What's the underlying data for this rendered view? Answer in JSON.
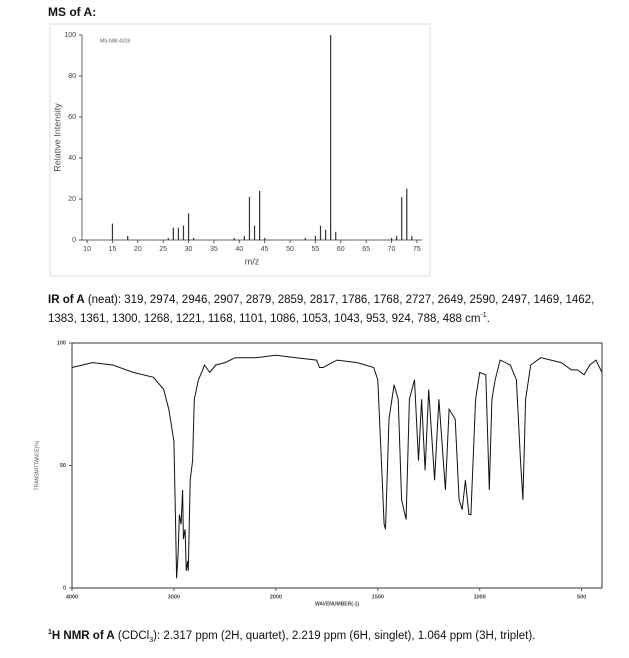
{
  "header": "MS of A:",
  "chart_data": [
    {
      "type": "bar",
      "note_label": "MS-NW-4319",
      "x_label": "m/z",
      "y_label": "Relative Intensity",
      "color": "#333333",
      "x": [
        15,
        18,
        26,
        27,
        28,
        29,
        30,
        31,
        39,
        41,
        42,
        43,
        44,
        45,
        53,
        55,
        56,
        57,
        58,
        59,
        70,
        71,
        72,
        73,
        74
      ],
      "values": [
        8,
        2,
        1,
        6,
        6,
        7,
        13,
        1,
        1,
        2,
        21,
        7,
        24,
        1,
        1,
        2,
        7,
        5,
        100,
        4,
        1,
        2,
        21,
        25,
        2
      ],
      "xlim": [
        9,
        76
      ],
      "xticks": [
        10,
        15,
        20,
        25,
        30,
        35,
        40,
        45,
        50,
        55,
        60,
        65,
        70,
        75
      ],
      "ylim": [
        0,
        100
      ],
      "yticks": [
        0,
        20,
        40,
        60,
        80,
        100
      ]
    },
    {
      "type": "line",
      "x_label": "WAVENUMBER(-1)",
      "y_label": "TRANSMITTANCE(%)",
      "color": "#111111",
      "x_scale": "piecewise",
      "x": [
        4000,
        3800,
        3600,
        3400,
        3200,
        3100,
        3050,
        3000,
        2985,
        2974,
        2960,
        2946,
        2930,
        2915,
        2907,
        2890,
        2879,
        2865,
        2859,
        2840,
        2817,
        2800,
        2760,
        2727,
        2700,
        2649,
        2590,
        2497,
        2400,
        2200,
        2000,
        1900,
        1800,
        1786,
        1768,
        1700,
        1600,
        1520,
        1500,
        1480,
        1469,
        1462,
        1445,
        1420,
        1400,
        1383,
        1361,
        1345,
        1320,
        1300,
        1285,
        1268,
        1250,
        1221,
        1200,
        1168,
        1150,
        1120,
        1101,
        1086,
        1070,
        1053,
        1043,
        1020,
        1000,
        970,
        953,
        940,
        924,
        900,
        850,
        820,
        800,
        788,
        775,
        750,
        700,
        600,
        550,
        520,
        488,
        460,
        430,
        400
      ],
      "values": [
        90,
        92,
        91,
        88,
        86,
        81,
        73,
        60,
        28,
        4,
        13,
        30,
        26,
        40,
        20,
        24,
        7,
        11,
        7,
        44,
        52,
        77,
        85,
        88,
        91,
        88,
        91,
        92,
        94,
        94,
        95,
        94,
        93,
        90,
        90,
        93,
        92,
        90,
        85,
        48,
        26,
        24,
        69,
        83,
        77,
        36,
        28,
        77,
        85,
        52,
        77,
        48,
        81,
        44,
        77,
        40,
        73,
        69,
        36,
        32,
        44,
        30,
        30,
        77,
        88,
        87,
        40,
        77,
        85,
        93,
        91,
        85,
        52,
        36,
        77,
        91,
        94,
        92,
        89,
        89,
        87,
        91,
        93,
        88
      ],
      "xlim": [
        4000,
        400
      ],
      "xticks": [
        4000,
        3000,
        2000,
        1500,
        1000,
        500
      ],
      "ylim": [
        0,
        100
      ],
      "yticks": [
        0,
        50,
        100
      ]
    }
  ],
  "ir_text": {
    "label": "IR of A",
    "body": " (neat):  319, 2974, 2946, 2907, 2879, 2859, 2817, 1786, 1768, 2727, 2649, 2590, 2497, 1469, 1462, 1383, 1361, 1300, 1268, 1221, 1168, 1101, 1086, 1053, 1043, 953, 924, 788, 488 cm",
    "sup": "-1",
    "end": "."
  },
  "nmr_text": {
    "sup": "1",
    "label": "H NMR of A",
    "body1": " (CDCl",
    "sub": "3",
    "body2": "): 2.317 ppm (2H, quartet), 2.219 ppm (6H, singlet), 1.064 ppm (3H, triplet)."
  }
}
